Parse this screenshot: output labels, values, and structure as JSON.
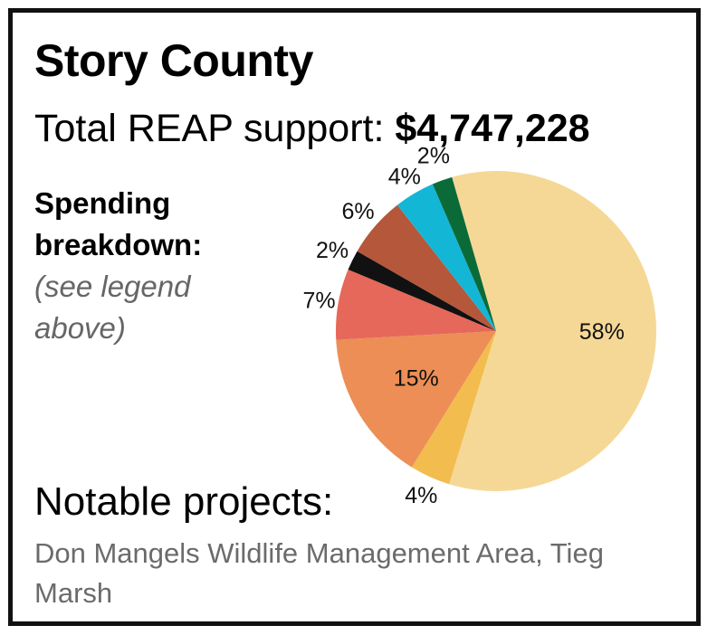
{
  "header": {
    "title": "Story County",
    "total_label": "Total REAP support:",
    "total_value": "$4,747,228"
  },
  "sidebar": {
    "heading_line1": "Spending",
    "heading_line2": "breakdown:",
    "note": "(see legend above)"
  },
  "footer": {
    "notable_label": "Notable projects:",
    "projects": "Don Mangels Wildlife Management Area, Tieg Marsh"
  },
  "chart_data": {
    "type": "pie",
    "title": "",
    "slices": [
      {
        "value": 58,
        "label": "58%",
        "color": "#F5D896"
      },
      {
        "value": 4,
        "label": "4%",
        "color": "#F2BC4E"
      },
      {
        "value": 15,
        "label": "15%",
        "color": "#EC8E55"
      },
      {
        "value": 7,
        "label": "7%",
        "color": "#E6685A"
      },
      {
        "value": 2,
        "label": "2%",
        "color": "#111111"
      },
      {
        "value": 6,
        "label": "6%",
        "color": "#B5573B"
      },
      {
        "value": 4,
        "label": "4%",
        "color": "#14B6D6"
      },
      {
        "value": 2,
        "label": "2%",
        "color": "#0B6B38"
      }
    ]
  }
}
